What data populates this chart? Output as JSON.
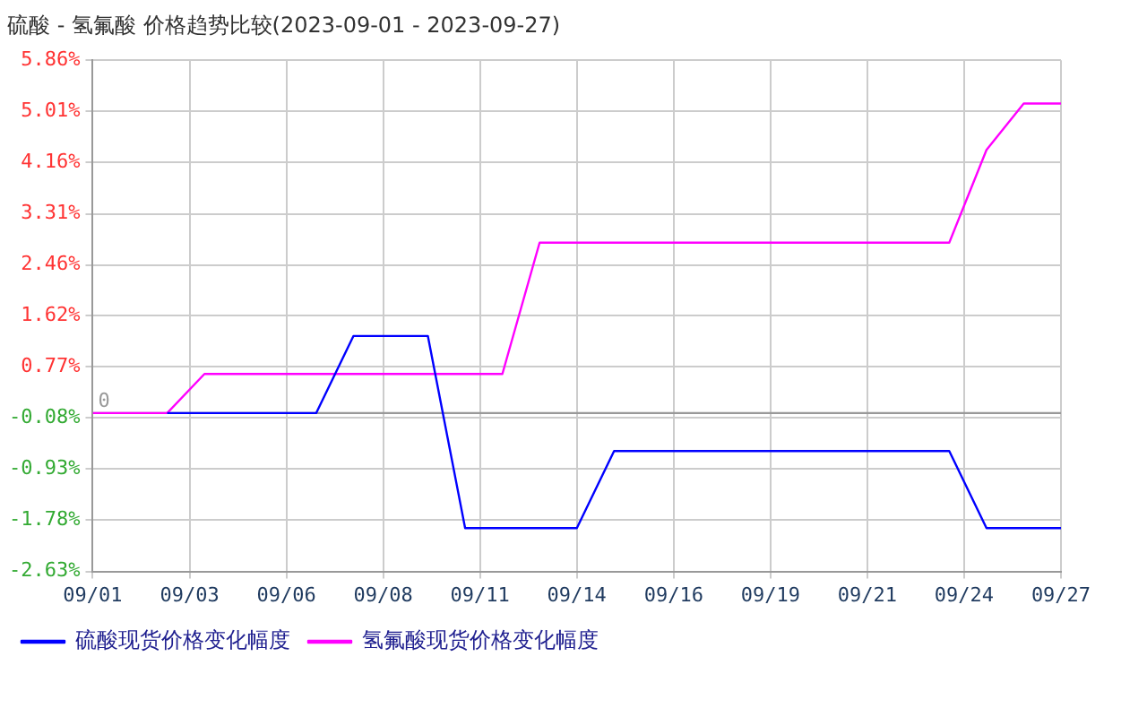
{
  "chart_data": {
    "type": "line",
    "title": "硫酸 - 氢氟酸 价格趋势比较(2023-09-01 - 2023-09-27)",
    "x": [
      "2023-09-01",
      "2023-09-02",
      "2023-09-03",
      "2023-09-04",
      "2023-09-05",
      "2023-09-06",
      "2023-09-07",
      "2023-09-08",
      "2023-09-09",
      "2023-09-10",
      "2023-09-11",
      "2023-09-12",
      "2023-09-13",
      "2023-09-14",
      "2023-09-15",
      "2023-09-16",
      "2023-09-17",
      "2023-09-18",
      "2023-09-19",
      "2023-09-20",
      "2023-09-21",
      "2023-09-22",
      "2023-09-23",
      "2023-09-24",
      "2023-09-25",
      "2023-09-26",
      "2023-09-27"
    ],
    "series": [
      {
        "name": "硫酸现货价格变化幅度",
        "color": "#0000ff",
        "values": [
          null,
          null,
          0,
          0,
          0,
          0,
          0,
          1.28,
          1.28,
          1.28,
          -1.91,
          -1.91,
          -1.91,
          -1.91,
          -0.63,
          -0.63,
          -0.63,
          -0.63,
          -0.63,
          -0.63,
          -0.63,
          -0.63,
          -0.63,
          -0.63,
          -1.91,
          -1.91,
          -1.91
        ]
      },
      {
        "name": "氢氟酸现货价格变化幅度",
        "color": "#ff00ff",
        "values": [
          0,
          0,
          0,
          0.65,
          0.65,
          0.65,
          0.65,
          0.65,
          0.65,
          0.65,
          0.65,
          0.65,
          2.83,
          2.83,
          2.83,
          2.83,
          2.83,
          2.83,
          2.83,
          2.83,
          2.83,
          2.83,
          2.83,
          2.83,
          4.37,
          5.14,
          5.14
        ]
      }
    ],
    "xlim": [
      "2023-09-01",
      "2023-09-27"
    ],
    "xticks": [
      {
        "value": "2023-09-01",
        "label": "09/01"
      },
      {
        "value": "2023-09-03T14:24",
        "label": "09/03"
      },
      {
        "value": "2023-09-06T04:48",
        "label": "09/06"
      },
      {
        "value": "2023-09-08T19:12",
        "label": "09/08"
      },
      {
        "value": "2023-09-11T09:36",
        "label": "09/11"
      },
      {
        "value": "2023-09-14",
        "label": "09/14"
      },
      {
        "value": "2023-09-16T14:24",
        "label": "09/16"
      },
      {
        "value": "2023-09-19T04:48",
        "label": "09/19"
      },
      {
        "value": "2023-09-21T19:12",
        "label": "09/21"
      },
      {
        "value": "2023-09-24T09:36",
        "label": "09/24"
      },
      {
        "value": "2023-09-27",
        "label": "09/27"
      }
    ],
    "ylim": [
      -2.63,
      5.86
    ],
    "yticks": [
      {
        "value": 5.86,
        "label": "5.86%"
      },
      {
        "value": 5.01,
        "label": "5.01%"
      },
      {
        "value": 4.16,
        "label": "4.16%"
      },
      {
        "value": 3.31,
        "label": "3.31%"
      },
      {
        "value": 2.46,
        "label": "2.46%"
      },
      {
        "value": 1.62,
        "label": "1.62%"
      },
      {
        "value": 0.77,
        "label": "0.77%"
      },
      {
        "value": -0.08,
        "label": "-0.08%"
      },
      {
        "value": -0.93,
        "label": "-0.93%"
      },
      {
        "value": -1.78,
        "label": "-1.78%"
      },
      {
        "value": -2.63,
        "label": "-2.63%"
      }
    ],
    "ref_lines": [
      {
        "axis": "y",
        "value": 0,
        "label": "0",
        "color": "#999999"
      }
    ],
    "grid": true,
    "legend": "bottom",
    "marker": "none",
    "line_style": "solid"
  }
}
